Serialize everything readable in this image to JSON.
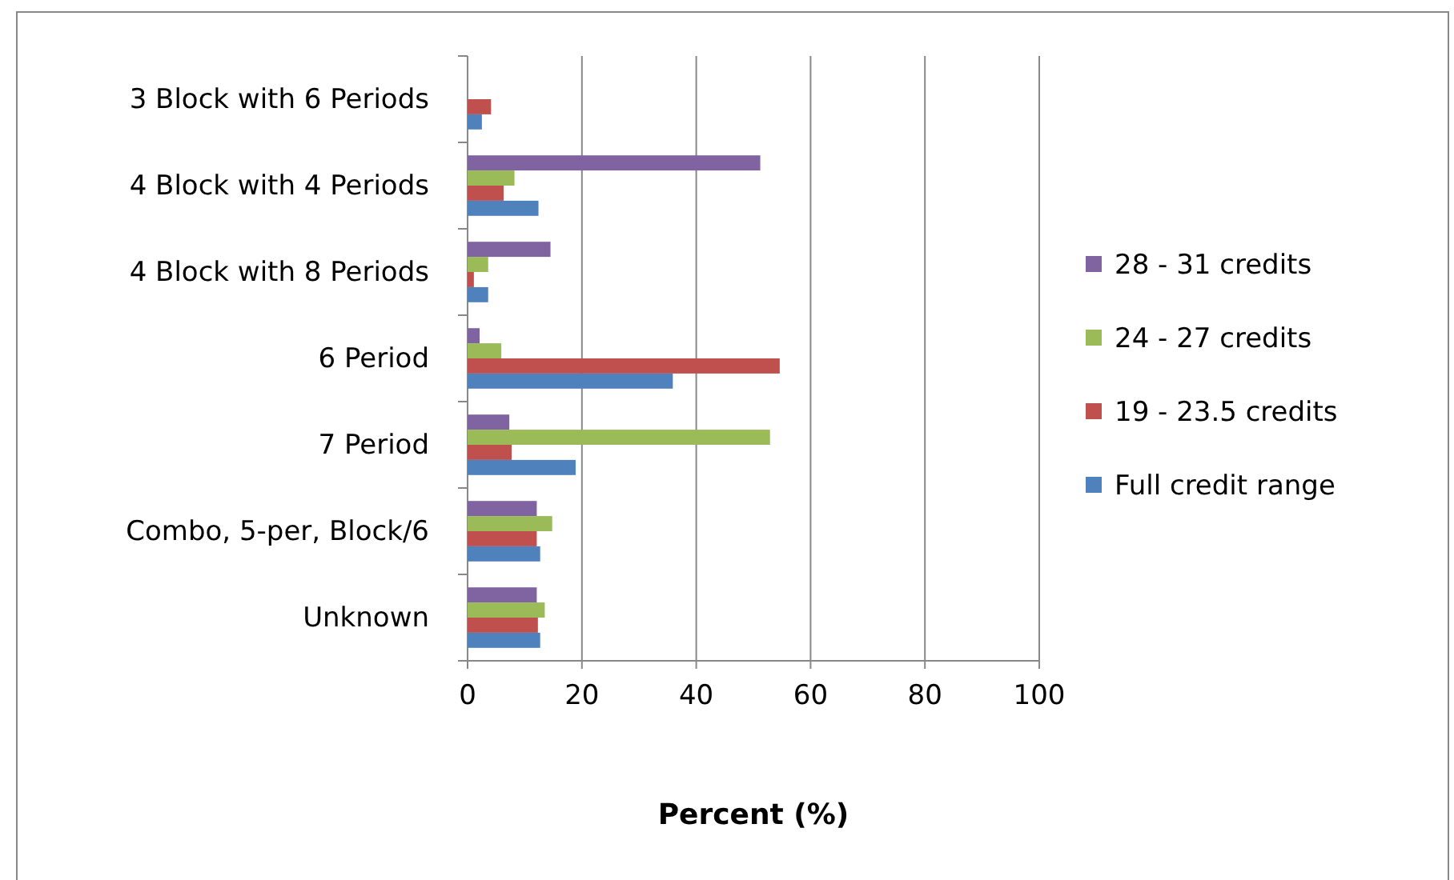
{
  "chart_data": {
    "type": "bar",
    "orientation": "horizontal",
    "xlabel": "Percent (%)",
    "categories": [
      "3 Block with 6 Periods",
      "4 Block with 4 Periods",
      "4 Block with 8 Periods",
      "6 Period",
      "7 Period",
      "Combo, 5-per, Block/6",
      "Unknown"
    ],
    "series": [
      {
        "name": "28 - 31 credits",
        "color": "#8064a2",
        "values": [
          0,
          51.2,
          14.5,
          2.1,
          7.3,
          12.1,
          12.1
        ]
      },
      {
        "name": "24 - 27 credits",
        "color": "#9bbb59",
        "values": [
          0,
          8.2,
          3.6,
          5.9,
          52.9,
          14.8,
          13.5
        ]
      },
      {
        "name": "19 - 23.5 credits",
        "color": "#c0504d",
        "values": [
          4.1,
          6.3,
          1.1,
          54.6,
          7.7,
          12.1,
          12.3
        ]
      },
      {
        "name": "Full credit range",
        "color": "#4f81bd",
        "values": [
          2.5,
          12.4,
          3.6,
          35.9,
          18.9,
          12.7,
          12.7
        ]
      }
    ],
    "xlim": [
      0,
      100
    ],
    "xticks": [
      0,
      20,
      40,
      60,
      80,
      100
    ],
    "grid": "x",
    "legend": "right"
  }
}
